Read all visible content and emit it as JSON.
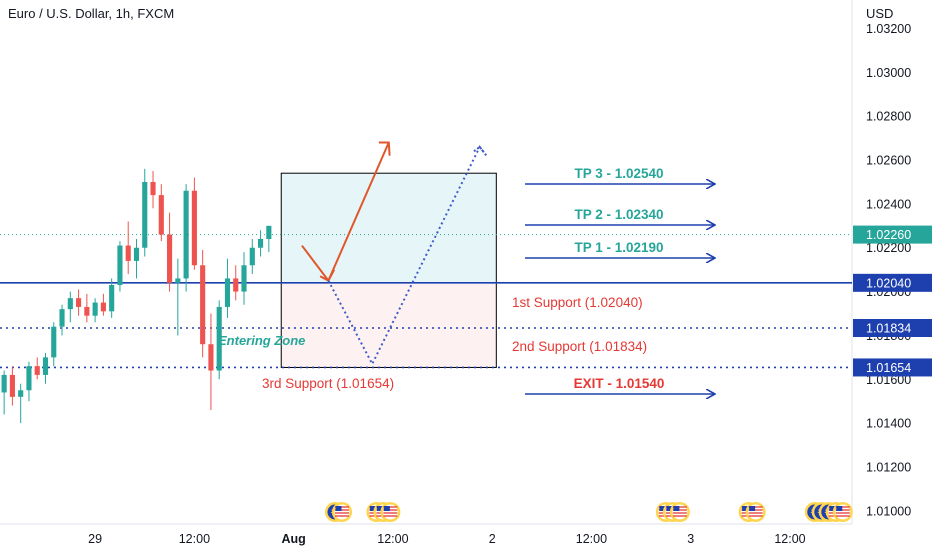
{
  "header": {
    "title": "Euro / U.S. Dollar, 1h, FXCM",
    "currency": "USD"
  },
  "chart_data": {
    "type": "candlestick",
    "symbol": "EURUSD",
    "ylim": [
      1.0094,
      1.0333
    ],
    "y_ticks": [
      1.032,
      1.03,
      1.028,
      1.026,
      1.024,
      1.022,
      1.02,
      1.018,
      1.016,
      1.014,
      1.012,
      1.01
    ],
    "y_tick_labels": [
      "1.03200",
      "1.03000",
      "1.02800",
      "1.02600",
      "1.02400",
      "1.02200",
      "1.02000",
      "1.01800",
      "1.01600",
      "1.01400",
      "1.01200",
      "1.01000"
    ],
    "x_tick_labels": [
      "29",
      "12:00",
      "Aug",
      "12:00",
      "2",
      "12:00",
      "3",
      "12:00"
    ],
    "x_tick_bar_index": [
      11,
      23,
      35,
      47,
      59,
      71,
      83,
      95
    ],
    "total_bar_slots": 103,
    "candles": [
      [
        1.0154,
        1.0164,
        1.0144,
        1.0162
      ],
      [
        1.0162,
        1.0166,
        1.0148,
        1.0152
      ],
      [
        1.0152,
        1.0158,
        1.014,
        1.0155
      ],
      [
        1.0155,
        1.0168,
        1.015,
        1.0166
      ],
      [
        1.0166,
        1.017,
        1.016,
        1.0162
      ],
      [
        1.0162,
        1.0172,
        1.0158,
        1.017
      ],
      [
        1.017,
        1.0186,
        1.0166,
        1.0184
      ],
      [
        1.0184,
        1.0194,
        1.018,
        1.0192
      ],
      [
        1.0192,
        1.02,
        1.0186,
        1.0197
      ],
      [
        1.0197,
        1.0201,
        1.0189,
        1.0193
      ],
      [
        1.0193,
        1.0199,
        1.0186,
        1.0189
      ],
      [
        1.0189,
        1.0197,
        1.0186,
        1.0195
      ],
      [
        1.0195,
        1.0199,
        1.0189,
        1.0191
      ],
      [
        1.0191,
        1.0206,
        1.0188,
        1.0203
      ],
      [
        1.0203,
        1.0223,
        1.02,
        1.0221
      ],
      [
        1.0221,
        1.0232,
        1.0208,
        1.0214
      ],
      [
        1.0214,
        1.0224,
        1.0206,
        1.022
      ],
      [
        1.022,
        1.0256,
        1.0216,
        1.025
      ],
      [
        1.025,
        1.0255,
        1.0238,
        1.0244
      ],
      [
        1.0244,
        1.0249,
        1.0223,
        1.0226
      ],
      [
        1.0226,
        1.0236,
        1.02,
        1.0204
      ],
      [
        1.0204,
        1.0215,
        1.018,
        1.0206
      ],
      [
        1.0206,
        1.0249,
        1.02,
        1.0246
      ],
      [
        1.0246,
        1.0252,
        1.021,
        1.0212
      ],
      [
        1.0212,
        1.0219,
        1.017,
        1.0176
      ],
      [
        1.0176,
        1.019,
        1.0146,
        1.0164
      ],
      [
        1.0164,
        1.0196,
        1.016,
        1.0193
      ],
      [
        1.0193,
        1.0215,
        1.0188,
        1.0206
      ],
      [
        1.0206,
        1.0212,
        1.0196,
        1.02
      ],
      [
        1.02,
        1.0218,
        1.0194,
        1.0212
      ],
      [
        1.0212,
        1.0224,
        1.0208,
        1.022
      ],
      [
        1.022,
        1.0228,
        1.0216,
        1.0224
      ],
      [
        1.0224,
        1.023,
        1.0218,
        1.023
      ]
    ],
    "colors": {
      "up": "#26a69a",
      "down": "#ef5350",
      "level_line": "#1e40af",
      "tp_text": "#26a69a",
      "support_text": "#e53935",
      "exit_text": "#e53935",
      "arrow": "#1e40af",
      "path_line": "#e0572b",
      "dotted_path": "#3e5bc7",
      "last_price_tag": "#26a69a",
      "level_tag": "#1e40af"
    },
    "last_price": {
      "value": 1.0226,
      "label": "1.02260"
    },
    "levels": [
      {
        "value": 1.0204,
        "label": "1.02040",
        "style": "solid"
      },
      {
        "value": 1.01834,
        "label": "1.01834",
        "style": "dotted"
      },
      {
        "value": 1.01654,
        "label": "1.01654",
        "style": "dotted"
      }
    ],
    "zones": [
      {
        "name": "tp-zone",
        "top": 1.0254,
        "bottom": 1.0204,
        "fill": "#e6f6f8"
      },
      {
        "name": "risk-zone",
        "top": 1.0204,
        "bottom": 1.01654,
        "fill": "#fdf1f1"
      }
    ],
    "annotations": {
      "tp3": "TP 3 - 1.02540",
      "tp2": "TP 2 - 1.02340",
      "tp1": "TP 1 - 1.02190",
      "support1": "1st Support (1.02040)",
      "support2": "2nd Support (1.01834)",
      "support3": "3rd Support (1.01654)",
      "exit": "EXIT - 1.01540",
      "entering": "Entering Zone"
    },
    "target_levels": [
      1.0254,
      1.0234,
      1.0219,
      1.0154
    ],
    "event_flags": [
      {
        "bar": 40,
        "flags": [
          "EU",
          "US"
        ]
      },
      {
        "bar": 45,
        "flags": [
          "US",
          "US",
          "US"
        ]
      },
      {
        "bar": 80,
        "flags": [
          "US",
          "US",
          "US"
        ]
      },
      {
        "bar": 90,
        "flags": [
          "US",
          "US"
        ]
      },
      {
        "bar": 98,
        "flags": [
          "EU",
          "EU",
          "EU",
          "US",
          "US"
        ]
      }
    ]
  }
}
